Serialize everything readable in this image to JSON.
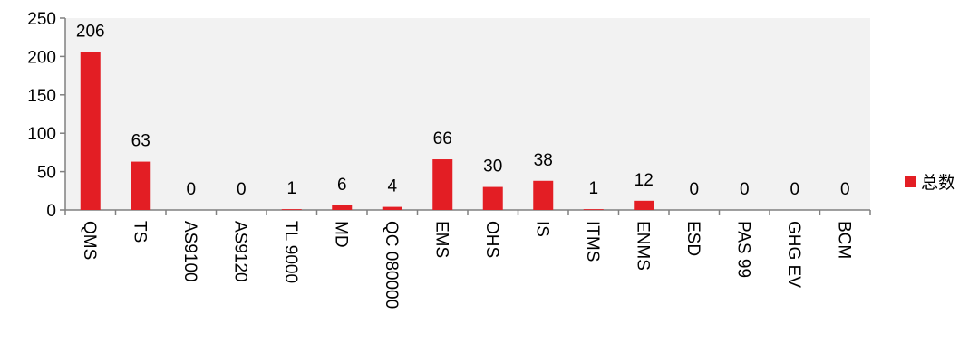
{
  "chart_data": {
    "type": "bar",
    "categories": [
      "QMS",
      "TS",
      "AS9100",
      "AS9120",
      "TL 9000",
      "MD",
      "QC 080000",
      "EMS",
      "OHS",
      "IS",
      "ITMS",
      "ENMS",
      "ESD",
      "PAS 99",
      "GHG EV",
      "BCM"
    ],
    "series": [
      {
        "name": "总数",
        "values": [
          206,
          63,
          0,
          0,
          1,
          6,
          4,
          66,
          30,
          38,
          1,
          12,
          0,
          0,
          0,
          0
        ]
      }
    ],
    "ylim": [
      0,
      250
    ],
    "yticks": [
      0,
      50,
      100,
      150,
      200,
      250
    ],
    "grid": false,
    "legend_position": "right",
    "bar_color": "#e31e24",
    "plot_background": "#f2f2f2"
  }
}
